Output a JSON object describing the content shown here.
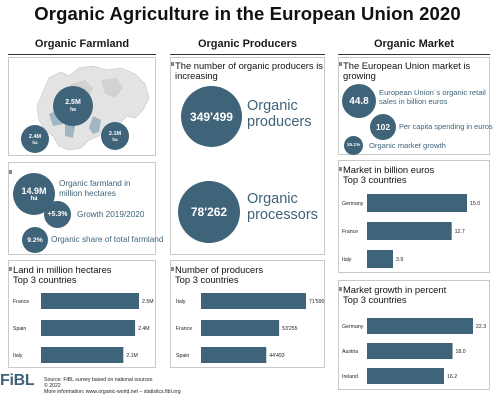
{
  "title": "Organic Agriculture in the European Union 2020",
  "columns": [
    "Organic Farmland",
    "Organic Producers",
    "Organic Market"
  ],
  "farmland": {
    "map_labels": [
      {
        "value": "2.5M",
        "unit": "ha"
      },
      {
        "value": "2.4M",
        "unit": "ha"
      },
      {
        "value": "2.1M",
        "unit": "ha"
      }
    ],
    "stats": [
      {
        "value": "14.9M",
        "unit": "ha",
        "label": "Organic farmland in million hectares"
      },
      {
        "value": "+5.3%",
        "label": "Growth 2019/2020"
      },
      {
        "value": "9.2%",
        "label": "Organic share of total farmland"
      }
    ]
  },
  "producers": {
    "heading": "The number of organic producers is increasing",
    "stats": [
      {
        "value": "349'499",
        "label": "Organic producers"
      },
      {
        "value": "78'262",
        "label": "Organic processors"
      }
    ]
  },
  "market": {
    "heading": "The European Union market is growing",
    "stats": [
      {
        "value": "44.8",
        "label": "European Union´s organic retail sales in billion euros"
      },
      {
        "value": "102",
        "label": "Per capita spending in euros"
      },
      {
        "value": "15.1%",
        "label": "Organic market growth"
      }
    ]
  },
  "chart_data": [
    {
      "type": "bar",
      "orientation": "horizontal",
      "title": "Land in million hectares\nTop 3 countries",
      "categories": [
        "France",
        "Spain",
        "Italy"
      ],
      "values": [
        2.5,
        2.4,
        2.1
      ],
      "value_labels": [
        "2.5M",
        "2.4M",
        "2.1M"
      ]
    },
    {
      "type": "bar",
      "orientation": "horizontal",
      "title": "Number of producers\nTop 3 countries",
      "categories": [
        "Italy",
        "France",
        "Spain"
      ],
      "values": [
        71590,
        53255,
        44493
      ],
      "value_labels": [
        "71'590",
        "53'255",
        "44'493"
      ]
    },
    {
      "type": "bar",
      "orientation": "horizontal",
      "title": "Market in billion euros\nTop 3 countries",
      "categories": [
        "Germany",
        "France",
        "Italy"
      ],
      "values": [
        15.0,
        12.7,
        3.9
      ],
      "value_labels": [
        "15.0",
        "12.7",
        "3.9"
      ]
    },
    {
      "type": "bar",
      "orientation": "horizontal",
      "title": "Market growth in percent\nTop 3 countries",
      "categories": [
        "Germany",
        "Austria",
        "Ireland"
      ],
      "values": [
        22.3,
        18.0,
        16.2
      ],
      "value_labels": [
        "22.3",
        "18.0",
        "16.2"
      ]
    }
  ],
  "footer": {
    "logo": "FiBL",
    "source_lines": [
      "Source: FiBL survey based on national sources",
      "© 2022",
      "More information: www.organic-world.net – statistics.fibl.org"
    ]
  }
}
